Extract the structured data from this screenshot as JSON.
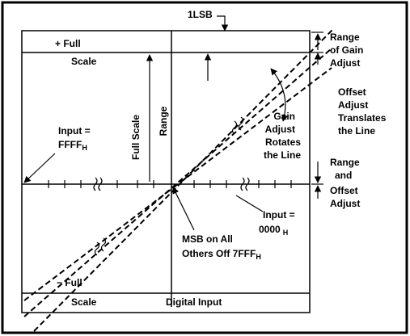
{
  "lsb": "1LSB",
  "plus_full": [
    "+ Full",
    "Scale"
  ],
  "minus_full": [
    "− Full",
    "Scale"
  ],
  "gain_range": [
    "Range",
    "of Gain",
    "Adjust"
  ],
  "offset_translates": [
    "Offset",
    "Adjust",
    "Translates",
    "the Line"
  ],
  "gain_rotates": [
    "Gain",
    "Adjust",
    "Rotates",
    "the Line"
  ],
  "input_ffff": {
    "line1": "Input =",
    "value": "FFFF",
    "sub": "H"
  },
  "full_scale_range": [
    "Full Scale",
    "Range"
  ],
  "range_offset": [
    "Range",
    "and",
    "Offset",
    "Adjust"
  ],
  "input_0000": {
    "line1": "Input =",
    "value": "0000",
    "sub": "H"
  },
  "msb": {
    "line1": "MSB on All",
    "line2": "Others Off 7FFF",
    "sub": "H"
  },
  "x_axis": "Digital Input"
}
